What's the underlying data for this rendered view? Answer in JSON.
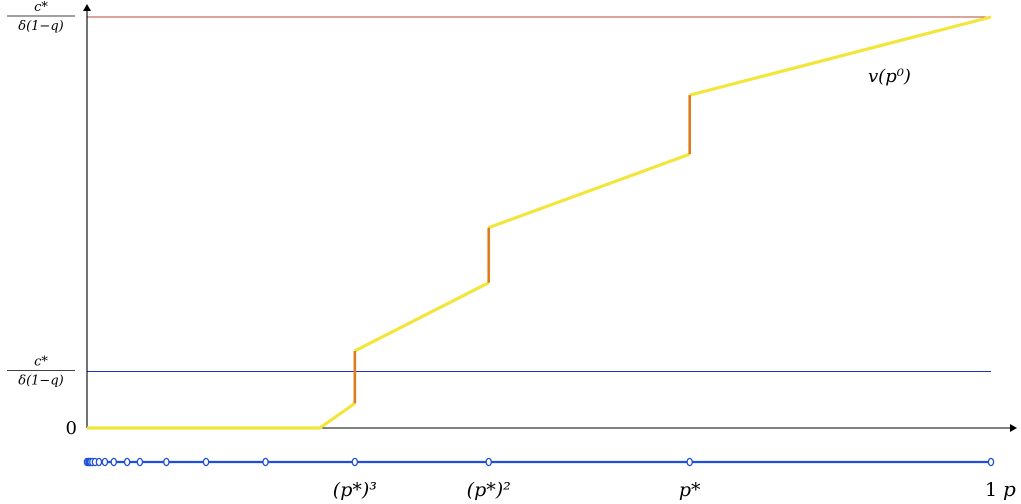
{
  "chart_data": {
    "type": "line",
    "x_range": [
      0,
      1
    ],
    "y_range": [
      0,
      1
    ],
    "y_ticks": [
      {
        "value": 0,
        "label": "0"
      },
      {
        "value": 0.1375,
        "label_num": "c*",
        "label_den": "δ(1−q)"
      },
      {
        "value": 1,
        "label_num": "c*",
        "label_den": "δ(1−q)"
      }
    ],
    "x_ticks": [
      {
        "value": 0.2963,
        "label": "(p*)³"
      },
      {
        "value": 0.4444,
        "label": "(p*)²"
      },
      {
        "value": 0.6667,
        "label": "p*"
      },
      {
        "value": 1,
        "label": "1"
      }
    ],
    "x_axis_label": "p",
    "curve_label": "v(p⁰)",
    "series": [
      {
        "name": "v(p⁰)",
        "color": "#f2e63c",
        "segments": [
          [
            [
              0,
              0
            ],
            [
              0.2575,
              0
            ],
            [
              0.2963,
              0.06
            ]
          ],
          [
            [
              0.2963,
              0.1875
            ],
            [
              0.4444,
              0.3536
            ]
          ],
          [
            [
              0.4444,
              0.4875
            ],
            [
              0.6667,
              0.6663
            ]
          ],
          [
            [
              0.6667,
              0.8098
            ],
            [
              1,
              1
            ]
          ]
        ]
      }
    ],
    "jumps": {
      "color": "#e07b1c",
      "segments": [
        [
          [
            0.2963,
            0.06
          ],
          [
            0.2963,
            0.1875
          ]
        ],
        [
          [
            0.4444,
            0.3536
          ],
          [
            0.4444,
            0.4875
          ]
        ],
        [
          [
            0.6667,
            0.6663
          ],
          [
            0.6667,
            0.8098
          ]
        ]
      ]
    },
    "hlines": [
      {
        "y": 1,
        "color": "#b5473a"
      },
      {
        "y": 0.1375,
        "color": "#2233b8"
      }
    ],
    "number_line": {
      "color": "#1e4fd6",
      "points": [
        0,
        0.0017,
        0.0026,
        0.0039,
        0.0059,
        0.0088,
        0.0132,
        0.0198,
        0.0296,
        0.0444,
        0.0585,
        0.0878,
        0.1317,
        0.1975,
        0.2963,
        0.4444,
        0.6667,
        1
      ]
    }
  }
}
